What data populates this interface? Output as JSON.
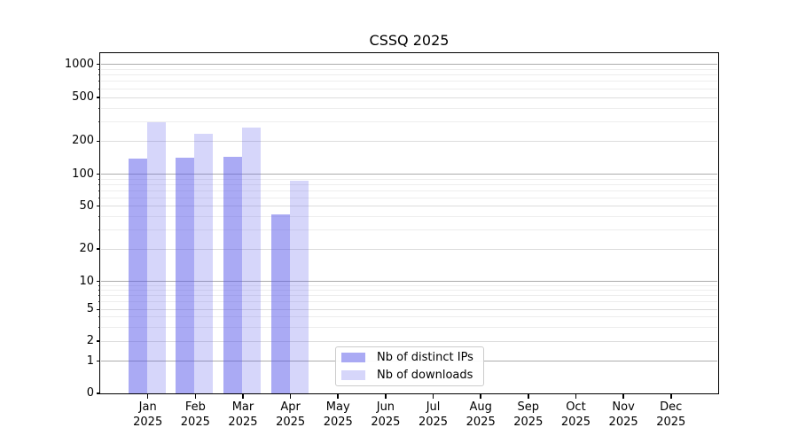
{
  "figure": {
    "title": "CSSQ 2025"
  },
  "chart_data": {
    "type": "bar",
    "title": "CSSQ 2025",
    "categories": [
      "Jan 2025",
      "Feb 2025",
      "Mar 2025",
      "Apr 2025",
      "May 2025",
      "Jun 2025",
      "Jul 2025",
      "Aug 2025",
      "Sep 2025",
      "Oct 2025",
      "Nov 2025",
      "Dec 2025"
    ],
    "series": [
      {
        "name": "Nb of distinct IPs",
        "color": "#5555E980",
        "perceived_color": "#A9A9F1",
        "values": [
          140,
          142,
          144,
          42,
          0,
          0,
          0,
          0,
          0,
          0,
          0,
          0
        ]
      },
      {
        "name": "Nb of downloads",
        "color": "#5555E93E",
        "perceived_color": "#D9D9F6",
        "values": [
          295,
          233,
          264,
          87,
          0,
          0,
          0,
          0,
          0,
          0,
          0,
          0
        ]
      }
    ],
    "xlabel": "",
    "ylabel": "",
    "yscale": "symlog",
    "y_ticks": [
      0,
      1,
      2,
      5,
      10,
      20,
      50,
      100,
      200,
      500,
      1000
    ],
    "y_minor_gridlines": [
      3,
      4,
      6,
      7,
      8,
      9,
      30,
      40,
      60,
      70,
      80,
      90,
      300,
      400,
      600,
      700,
      800,
      900
    ],
    "ylim": [
      0,
      1250
    ],
    "grid": true,
    "legend_position": "lower center",
    "style": {
      "grid_decade_color": "#ACACAC",
      "grid_labeled_color": "#DDDDDD",
      "grid_minor_color": "#EDEDED",
      "spine_color": "#000000",
      "background": "#FFFFFF"
    }
  }
}
